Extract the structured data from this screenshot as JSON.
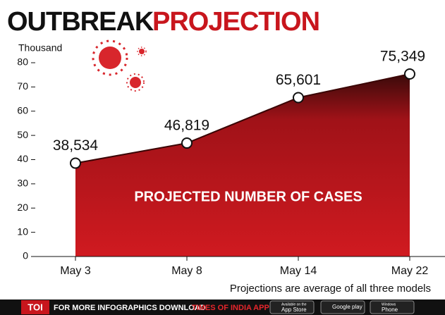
{
  "chart_data": {
    "type": "area",
    "title": [
      "OUTBREAK",
      "PROJECTION"
    ],
    "y_label": "Thousand",
    "categories": [
      "May 3",
      "May 8",
      "May 14",
      "May 22"
    ],
    "values": [
      38.534,
      46.819,
      65.601,
      75.349
    ],
    "value_labels": [
      "38,534",
      "46,819",
      "65,601",
      "75,349"
    ],
    "color": "#c8161d",
    "ylim": [
      0,
      80
    ],
    "yticks": [
      0,
      10,
      20,
      30,
      40,
      50,
      60,
      70,
      80
    ],
    "annotation": "PROJECTED NUMBER OF CASES",
    "note": "Projections are average of all three models"
  },
  "footer": {
    "brand": "TOI",
    "text": "FOR MORE INFOGRAPHICS DOWNLOAD",
    "app": "TIMES OF INDIA APP",
    "badges": [
      [
        "Available on the",
        "App Store"
      ],
      [
        "",
        "Google play"
      ],
      [
        "Windows",
        "Phone"
      ]
    ]
  }
}
